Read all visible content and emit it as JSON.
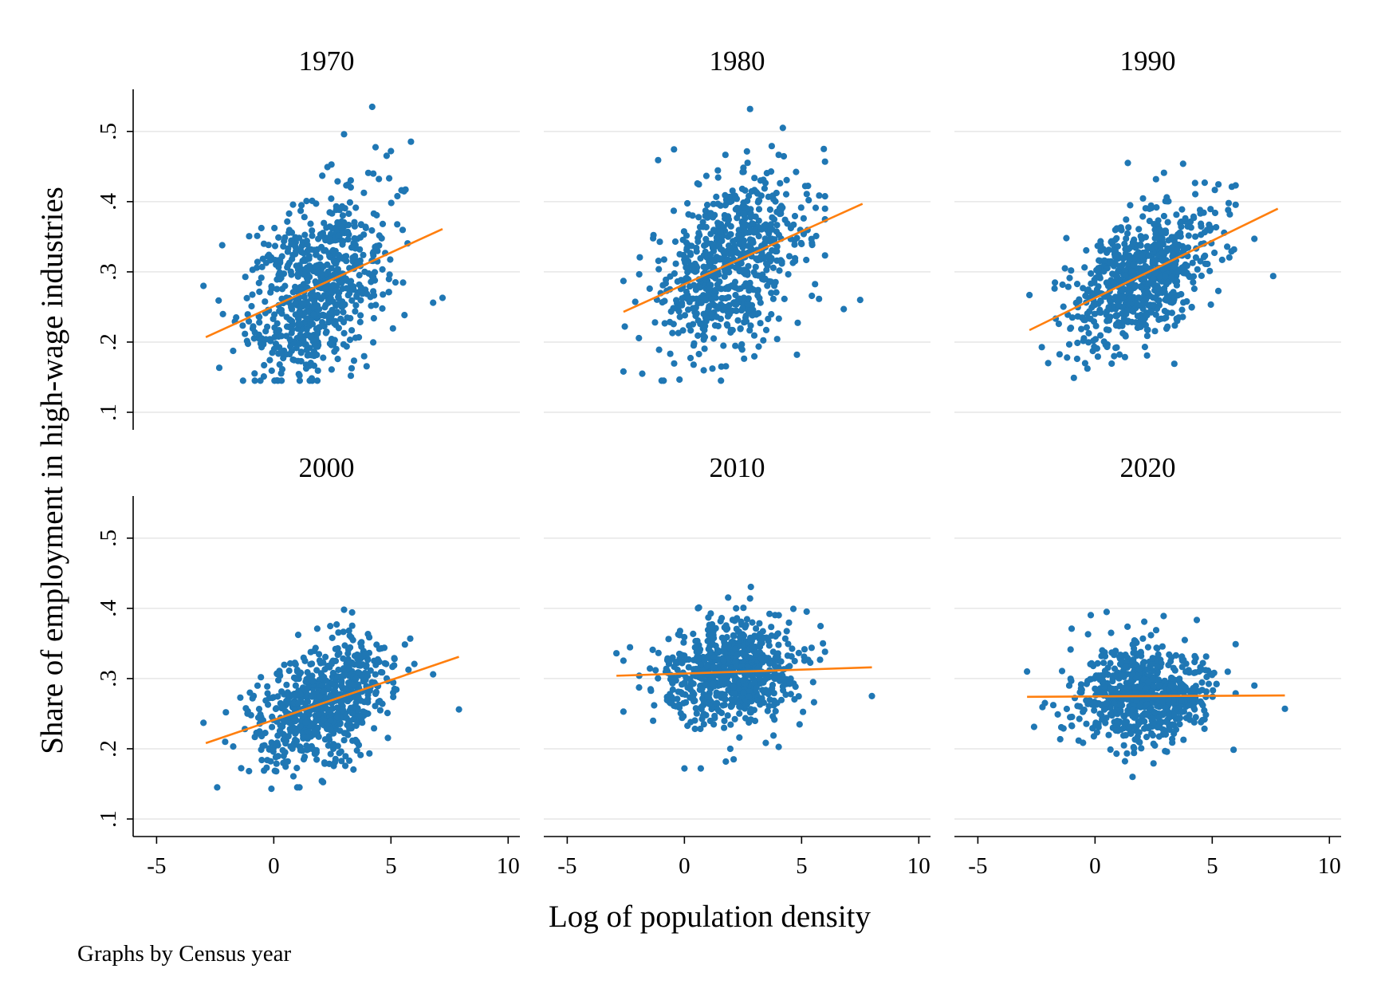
{
  "chart_data": {
    "type": "scatter",
    "layout": "small multiples (2 rows x 3 columns)",
    "xlabel": "Log of population density",
    "ylabel": "Share of employment in high-wage industries",
    "note": "Graphs by Census year",
    "xlim": [
      -6.0,
      10.5
    ],
    "ylim": [
      0.075,
      0.56
    ],
    "xticks": [
      -5,
      0,
      5,
      10
    ],
    "xtick_labels": [
      "-5",
      "0",
      "5",
      "10"
    ],
    "yticks": [
      0.1,
      0.2,
      0.3,
      0.4,
      0.5
    ],
    "ytick_labels": [
      ".1",
      ".2",
      ".3",
      ".4",
      ".5"
    ],
    "grid": "horizontal",
    "colors": {
      "points": "#1f77b4",
      "fit_line": "#ff7f0e",
      "grid": "#e6e6e6",
      "axis": "#000000"
    },
    "fit_line_note": "orange linear fit line drawn per panel",
    "panels": [
      {
        "title": "1970",
        "fit": {
          "x": [
            -2.9,
            7.2
          ],
          "y": [
            0.207,
            0.361
          ]
        },
        "summary": {
          "x_mean": 1.8,
          "x_sd": 1.5,
          "y_mean": 0.26,
          "y_sd": 0.065,
          "n": 700
        },
        "outliers": [
          [
            7.2,
            0.263
          ],
          [
            6.8,
            0.256
          ],
          [
            4.2,
            0.535
          ],
          [
            3.0,
            0.496
          ],
          [
            5.0,
            0.472
          ],
          [
            -3.0,
            0.28
          ],
          [
            -2.2,
            0.338
          ]
        ]
      },
      {
        "title": "1980",
        "fit": {
          "x": [
            -2.6,
            7.6
          ],
          "y": [
            0.243,
            0.397
          ]
        },
        "summary": {
          "x_mean": 2.0,
          "x_sd": 1.5,
          "y_mean": 0.305,
          "y_sd": 0.065,
          "n": 700
        },
        "outliers": [
          [
            7.5,
            0.26
          ],
          [
            6.8,
            0.247
          ],
          [
            2.8,
            0.532
          ],
          [
            4.2,
            0.505
          ],
          [
            4.8,
            0.182
          ],
          [
            -2.6,
            0.287
          ],
          [
            -1.8,
            0.155
          ]
        ]
      },
      {
        "title": "1990",
        "fit": {
          "x": [
            -2.8,
            7.8
          ],
          "y": [
            0.217,
            0.39
          ]
        },
        "summary": {
          "x_mean": 2.0,
          "x_sd": 1.5,
          "y_mean": 0.28,
          "y_sd": 0.048,
          "n": 700
        },
        "outliers": [
          [
            7.6,
            0.294
          ],
          [
            6.8,
            0.347
          ],
          [
            1.4,
            0.455
          ],
          [
            -2.8,
            0.267
          ],
          [
            -2.0,
            0.17
          ],
          [
            2.6,
            0.432
          ]
        ]
      },
      {
        "title": "2000",
        "fit": {
          "x": [
            -2.9,
            7.9
          ],
          "y": [
            0.208,
            0.331
          ]
        },
        "summary": {
          "x_mean": 2.2,
          "x_sd": 1.45,
          "y_mean": 0.27,
          "y_sd": 0.045,
          "n": 700
        },
        "outliers": [
          [
            7.9,
            0.256
          ],
          [
            6.8,
            0.306
          ],
          [
            3.0,
            0.398
          ],
          [
            -3.0,
            0.237
          ],
          [
            -0.1,
            0.143
          ],
          [
            1.0,
            0.145
          ]
        ]
      },
      {
        "title": "2010",
        "fit": {
          "x": [
            -2.9,
            8.0
          ],
          "y": [
            0.304,
            0.316
          ]
        },
        "summary": {
          "x_mean": 2.0,
          "x_sd": 1.45,
          "y_mean": 0.3,
          "y_sd": 0.04,
          "n": 700
        },
        "outliers": [
          [
            8.0,
            0.275
          ],
          [
            -2.9,
            0.336
          ],
          [
            2.8,
            0.414
          ],
          [
            0.0,
            0.172
          ],
          [
            0.7,
            0.172
          ],
          [
            2.1,
            0.185
          ]
        ]
      },
      {
        "title": "2020",
        "fit": {
          "x": [
            -2.9,
            8.1
          ],
          "y": [
            0.274,
            0.276
          ]
        },
        "summary": {
          "x_mean": 2.0,
          "x_sd": 1.45,
          "y_mean": 0.275,
          "y_sd": 0.037,
          "n": 700
        },
        "outliers": [
          [
            8.1,
            0.257
          ],
          [
            -2.9,
            0.31
          ],
          [
            2.1,
            0.381
          ],
          [
            1.6,
            0.16
          ],
          [
            6.8,
            0.29
          ],
          [
            -1.0,
            0.371
          ]
        ]
      }
    ]
  }
}
